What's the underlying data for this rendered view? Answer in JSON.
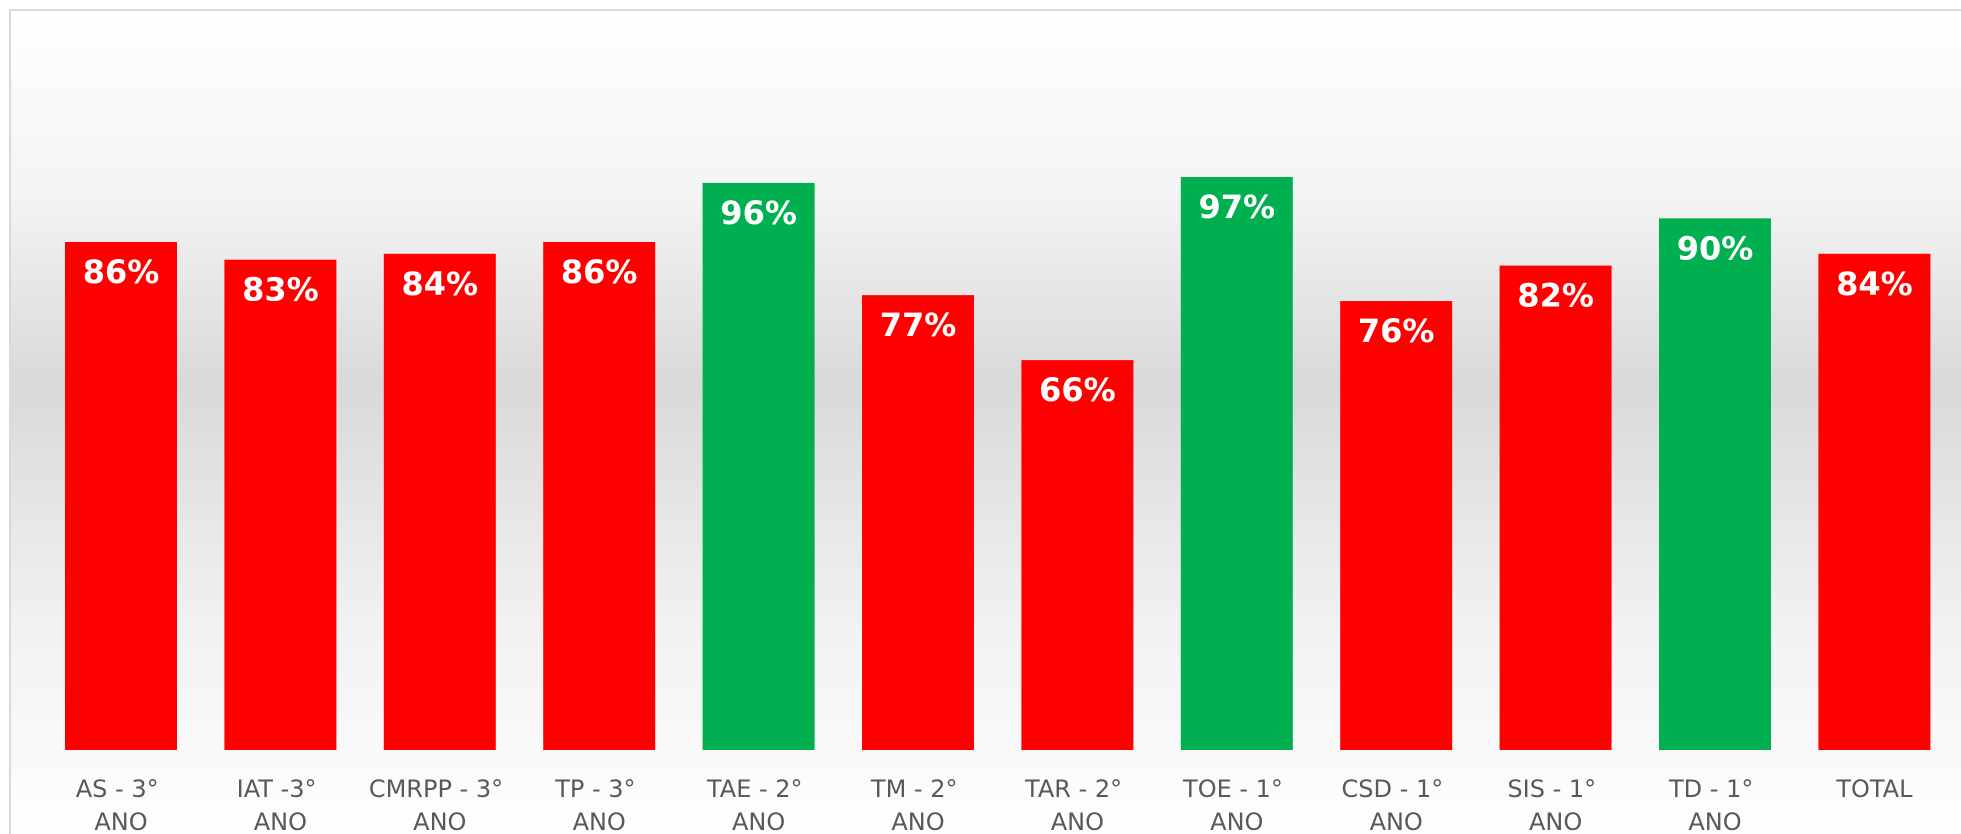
{
  "chart_data": {
    "type": "bar",
    "categories": [
      "AS - 3° ANO",
      "IAT -3° ANO",
      "CMRPP - 3° ANO",
      "TP - 3° ANO",
      "TAE - 2° ANO",
      "TM - 2° ANO",
      "TAR - 2° ANO",
      "TOE - 1° ANO",
      "CSD - 1° ANO",
      "SIS - 1° ANO",
      "TD - 1° ANO",
      "TOTAL"
    ],
    "values": [
      86,
      83,
      84,
      86,
      96,
      77,
      66,
      97,
      76,
      82,
      90,
      84
    ],
    "value_labels": [
      "86%",
      "83%",
      "84%",
      "86%",
      "96%",
      "77%",
      "66%",
      "97%",
      "76%",
      "82%",
      "90%",
      "84%"
    ],
    "colors": [
      "#ff0000",
      "#ff0000",
      "#ff0000",
      "#ff0000",
      "#00b050",
      "#ff0000",
      "#ff0000",
      "#00b050",
      "#ff0000",
      "#ff0000",
      "#00b050",
      "#ff0000"
    ],
    "grid": false
  }
}
